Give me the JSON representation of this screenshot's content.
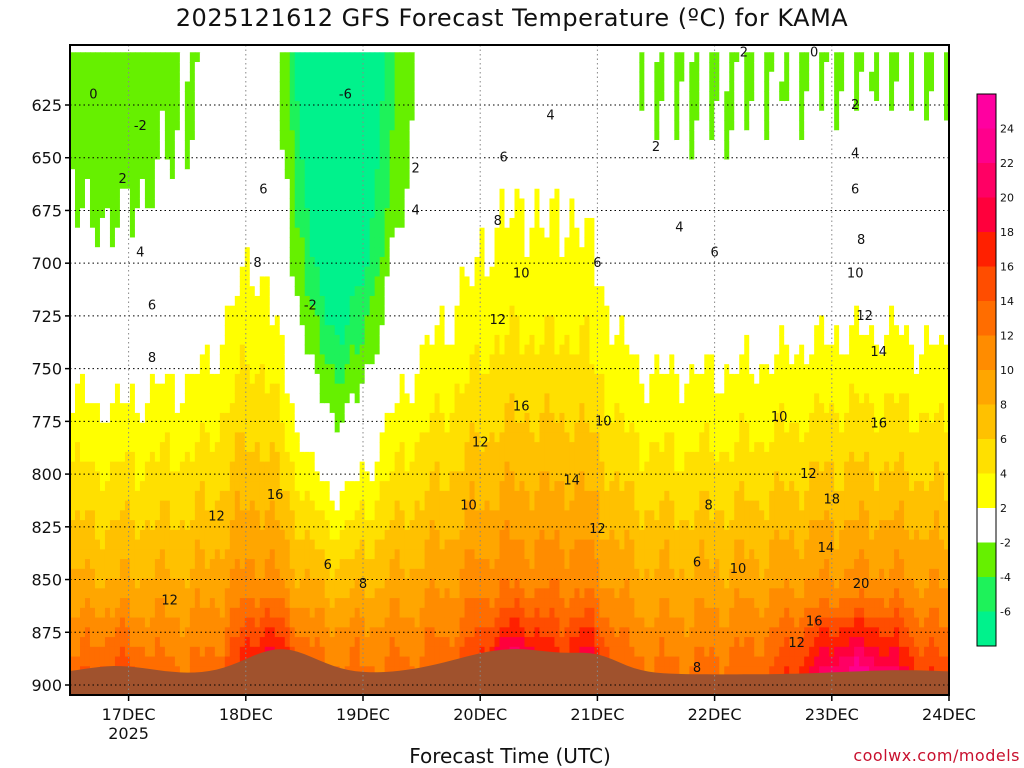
{
  "chart_data": {
    "type": "heatmap",
    "title": "2025121612 GFS Forecast Temperature (ºC) for KAMA",
    "xlabel": "Forecast Time (UTC)",
    "ylabel": "",
    "credit": "coolwx.com/models",
    "x_ticks": [
      "17DEC",
      "18DEC",
      "19DEC",
      "20DEC",
      "21DEC",
      "22DEC",
      "23DEC",
      "24DEC"
    ],
    "x_year_label": "2025",
    "y_ticks": [
      625,
      650,
      675,
      700,
      725,
      750,
      775,
      800,
      825,
      850,
      875,
      900
    ],
    "y_axis": "pressure (hPa), inverted",
    "ylim": [
      900,
      600
    ],
    "xlim_days": [
      16.5,
      24.0
    ],
    "grid": true,
    "colorbar": {
      "levels": [
        -8,
        -6,
        -4,
        -2,
        2,
        4,
        6,
        8,
        10,
        12,
        14,
        16,
        18,
        20,
        22,
        24,
        26
      ],
      "tick_labels": [
        "-6",
        "-4",
        "-2",
        "2",
        "4",
        "6",
        "8",
        "10",
        "12",
        "14",
        "16",
        "18",
        "20",
        "22",
        "24"
      ],
      "colors": [
        "#00f28c",
        "#1ef25a",
        "#66f000",
        "#ffffff",
        "#ffff00",
        "#ffe000",
        "#ffc100",
        "#ffa600",
        "#ff8c00",
        "#ff6d00",
        "#ff4d00",
        "#ff2000",
        "#ff003c",
        "#ff0064",
        "#ff008c",
        "#ff00a0"
      ]
    },
    "ground_color": "#a0522d",
    "zero_contour_color": "#b0005a",
    "contour_labels": [
      "0",
      "-2",
      "2",
      "4",
      "6",
      "8",
      "10",
      "12",
      "14",
      "16",
      "18",
      "20",
      "-6"
    ],
    "temperature_peaks": [
      {
        "time": "17DEC",
        "level_hPa": 870,
        "temp_c": 15
      },
      {
        "time": "18DEC",
        "level_hPa": 875,
        "temp_c": 19
      },
      {
        "time": "20DEC",
        "level_hPa": 870,
        "temp_c": 21
      },
      {
        "time": "21DEC",
        "level_hPa": 875,
        "temp_c": 17
      },
      {
        "time": "23DEC",
        "level_hPa": 860,
        "temp_c": 22
      }
    ],
    "cold_minimum": {
      "time": "18DEC 18Z",
      "level_hPa": 615,
      "temp_c": -7
    }
  }
}
